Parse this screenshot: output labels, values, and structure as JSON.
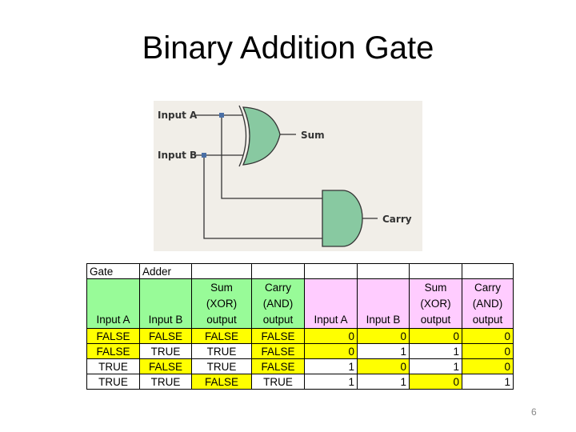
{
  "title": "Binary Addition Gate",
  "diagram": {
    "input_a": "Input A",
    "input_b": "Input B",
    "sum": "Sum",
    "carry": "Carry",
    "gate_color": "#88c9a1",
    "junction_color": "#4a6fa5"
  },
  "table": {
    "row1": [
      "Gate",
      "Adder",
      "",
      "",
      "",
      "",
      "",
      ""
    ],
    "headers": [
      "Input A",
      "Input B",
      "Sum (XOR) output",
      "Carry (AND) output",
      "Input A",
      "Input B",
      "Sum (XOR) output",
      "Carry (AND) output"
    ],
    "rows": [
      [
        "FALSE",
        "FALSE",
        "FALSE",
        "FALSE",
        "0",
        "0",
        "0",
        "0"
      ],
      [
        "FALSE",
        "TRUE",
        "TRUE",
        "FALSE",
        "0",
        "1",
        "1",
        "0"
      ],
      [
        "TRUE",
        "FALSE",
        "TRUE",
        "FALSE",
        "1",
        "0",
        "1",
        "0"
      ],
      [
        "TRUE",
        "TRUE",
        "FALSE",
        "TRUE",
        "1",
        "1",
        "0",
        "1"
      ]
    ],
    "colors": {
      "boolean_header": "#98fb98",
      "numeric_header": "#ffccff",
      "false_highlight": "#ffff00"
    }
  },
  "page_number": "6"
}
